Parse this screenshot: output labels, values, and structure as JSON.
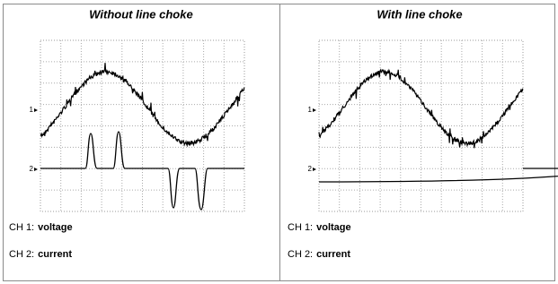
{
  "panels": [
    {
      "title": "Without line choke",
      "markers": [
        "1",
        "2"
      ],
      "legend": [
        {
          "label": "CH 1:",
          "value": "voltage"
        },
        {
          "label": "CH 2:",
          "value": "current"
        }
      ]
    },
    {
      "title": "With line choke",
      "markers": [
        "1",
        "2"
      ],
      "legend": [
        {
          "label": "CH 1:",
          "value": "voltage"
        },
        {
          "label": "CH 2:",
          "value": "current"
        }
      ]
    }
  ]
}
